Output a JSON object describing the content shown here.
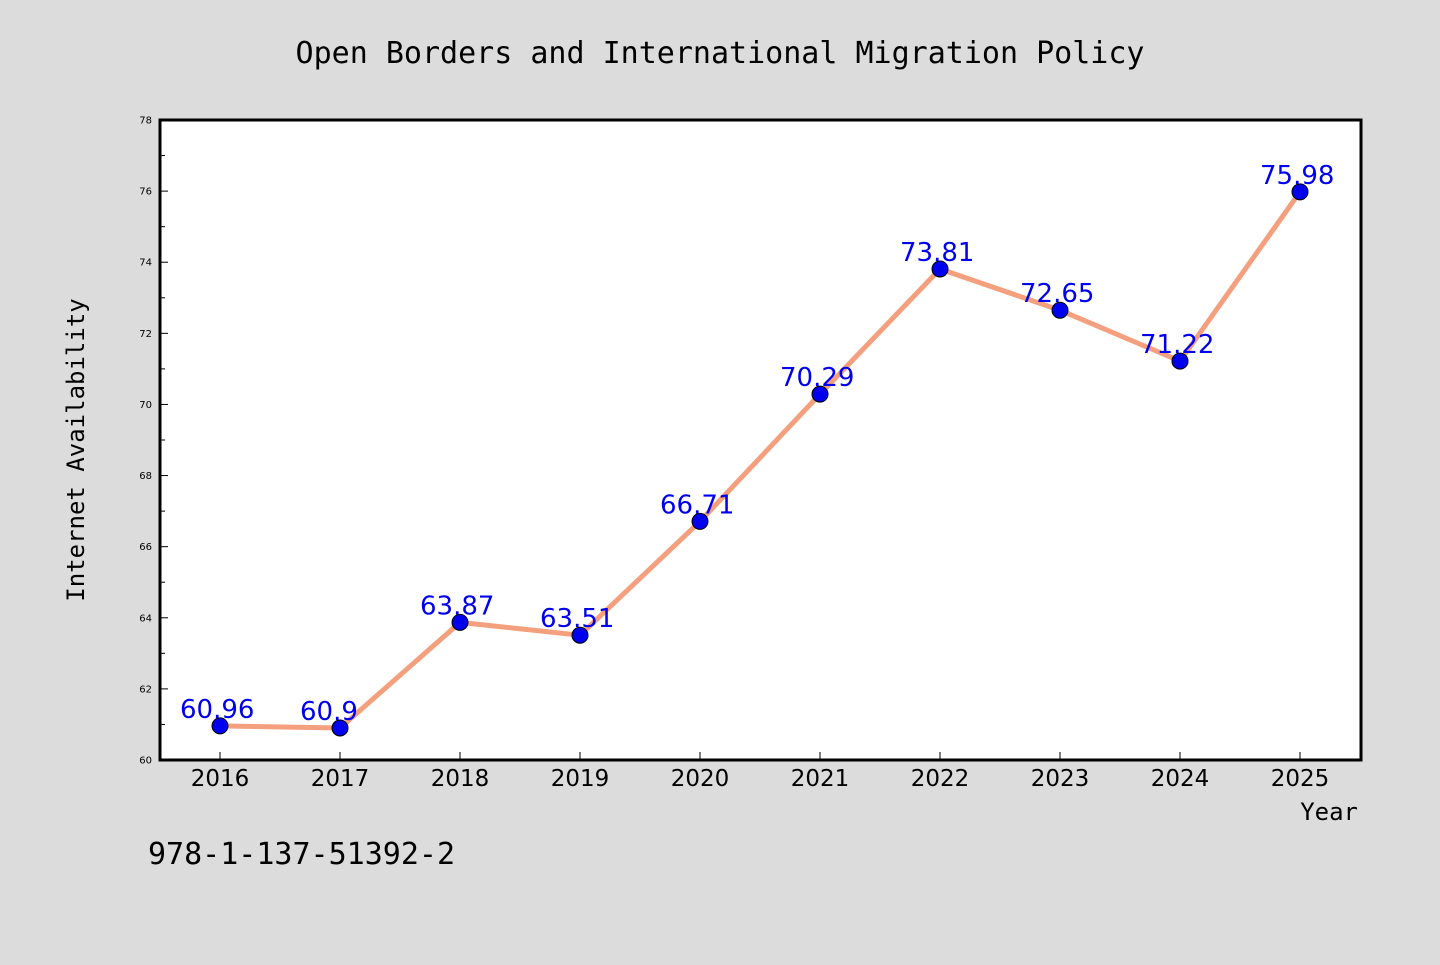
{
  "chart_data": {
    "type": "line",
    "title": "Open Borders and International Migration Policy",
    "xlabel": "Year",
    "ylabel": "Internet Availability",
    "categories": [
      "2016",
      "2017",
      "2018",
      "2019",
      "2020",
      "2021",
      "2022",
      "2023",
      "2024",
      "2025"
    ],
    "series": [
      {
        "values": [
          60.96,
          60.9,
          63.87,
          63.51,
          66.71,
          70.29,
          73.81,
          72.65,
          71.22,
          75.98
        ],
        "labels": [
          "60.96",
          "60.9",
          "63.87",
          "63.51",
          "66.71",
          "70.29",
          "73.81",
          "72.65",
          "71.22",
          "75.98"
        ],
        "line_color": "#f4a07e",
        "marker_color": "#0000ee",
        "label_color": "#0000ee"
      }
    ],
    "ylim": [
      60,
      78
    ],
    "yticks": [
      "60",
      "62",
      "64",
      "66",
      "68",
      "70",
      "72",
      "74",
      "76",
      "78"
    ],
    "grid": false,
    "legend": "none"
  },
  "footer_text": "978-1-137-51392-2",
  "colors": {
    "background": "#dcdcdc",
    "plot_background": "#ffffff",
    "axes": "#000000"
  }
}
